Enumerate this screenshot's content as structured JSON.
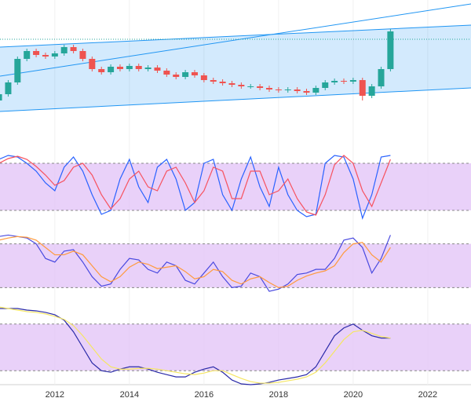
{
  "chart_data": [
    {
      "type": "candlestick",
      "x": [
        2010.5,
        2010.75,
        2011,
        2011.25,
        2011.5,
        2011.75,
        2012,
        2012.25,
        2012.5,
        2012.75,
        2013,
        2013.25,
        2013.5,
        2013.75,
        2014,
        2014.25,
        2014.5,
        2014.75,
        2015,
        2015.25,
        2015.5,
        2015.75,
        2016,
        2016.25,
        2016.5,
        2016.75,
        2017,
        2017.25,
        2017.5,
        2017.75,
        2018,
        2018.25,
        2018.5,
        2018.75,
        2019,
        2019.25,
        2019.5,
        2019.75,
        2020,
        2020.25,
        2020.5,
        2020.75,
        2021
      ],
      "open": [
        22,
        30,
        45,
        75,
        85,
        80,
        78,
        82,
        90,
        85,
        75,
        62,
        58,
        65,
        62,
        66,
        62,
        64,
        60,
        55,
        52,
        58,
        54,
        48,
        46,
        44,
        42,
        40,
        40,
        38,
        36,
        35,
        36,
        34,
        32,
        38,
        45,
        47,
        46,
        48,
        28,
        40,
        62
      ],
      "high": [
        33,
        48,
        78,
        88,
        88,
        83,
        85,
        93,
        93,
        88,
        78,
        65,
        68,
        68,
        69,
        69,
        67,
        67,
        63,
        58,
        61,
        61,
        57,
        51,
        49,
        47,
        45,
        43,
        43,
        41,
        39,
        39,
        39,
        37,
        41,
        48,
        50,
        50,
        51,
        51,
        43,
        65,
        113
      ],
      "low": [
        19,
        27,
        42,
        72,
        77,
        75,
        75,
        79,
        82,
        72,
        59,
        55,
        55,
        59,
        59,
        59,
        59,
        57,
        52,
        49,
        49,
        51,
        45,
        43,
        41,
        39,
        37,
        37,
        35,
        33,
        32,
        32,
        31,
        29,
        29,
        35,
        42,
        43,
        43,
        22,
        25,
        37,
        59
      ],
      "close": [
        30,
        45,
        75,
        85,
        80,
        78,
        82,
        90,
        85,
        75,
        62,
        58,
        65,
        62,
        66,
        62,
        64,
        60,
        55,
        52,
        58,
        54,
        48,
        46,
        44,
        42,
        40,
        40,
        38,
        36,
        35,
        36,
        34,
        32,
        38,
        45,
        47,
        46,
        48,
        28,
        40,
        62,
        110
      ],
      "up_color": "#26a69a",
      "down_color": "#ef5350",
      "xlim": [
        2010.53,
        2023.16
      ],
      "ylim": [
        0,
        150
      ],
      "channel": {
        "upper": [
          90,
          118
        ],
        "lower": [
          8,
          38
        ],
        "color": "#2196f3"
      },
      "trendline": [
        53,
        145
      ],
      "price_line": 100
    },
    {
      "type": "line",
      "x": [
        2010.5,
        2010.75,
        2011,
        2011.25,
        2011.5,
        2011.75,
        2012,
        2012.25,
        2012.5,
        2012.75,
        2013,
        2013.25,
        2013.5,
        2013.75,
        2014,
        2014.25,
        2014.5,
        2014.75,
        2015,
        2015.25,
        2015.5,
        2015.75,
        2016,
        2016.25,
        2016.5,
        2016.75,
        2017,
        2017.25,
        2017.5,
        2017.75,
        2018,
        2018.25,
        2018.5,
        2018.75,
        2019,
        2019.25,
        2019.5,
        2019.75,
        2020,
        2020.25,
        2020.5,
        2020.75,
        2021
      ],
      "series": [
        {
          "color": "#2962ff",
          "values": [
            85,
            90,
            88,
            80,
            70,
            55,
            45,
            75,
            88,
            70,
            40,
            15,
            20,
            60,
            85,
            50,
            30,
            75,
            85,
            60,
            20,
            30,
            80,
            85,
            40,
            20,
            60,
            88,
            50,
            25,
            75,
            40,
            20,
            12,
            15,
            80,
            90,
            88,
            60,
            10,
            40,
            88,
            90
          ]
        },
        {
          "color": "#f7525f",
          "values": [
            80,
            86,
            89,
            85,
            76,
            65,
            52,
            58,
            75,
            80,
            65,
            40,
            22,
            35,
            60,
            70,
            50,
            45,
            70,
            75,
            55,
            30,
            45,
            75,
            70,
            35,
            35,
            70,
            70,
            40,
            45,
            60,
            35,
            18,
            14,
            40,
            78,
            90,
            80,
            45,
            25,
            55,
            85
          ]
        }
      ],
      "xlim": [
        2010.53,
        2023.16
      ],
      "ylim": [
        0,
        100
      ],
      "bands": [
        20,
        80
      ]
    },
    {
      "type": "line",
      "x": [
        2010.5,
        2010.75,
        2011,
        2011.25,
        2011.5,
        2011.75,
        2012,
        2012.25,
        2012.5,
        2012.75,
        2013,
        2013.25,
        2013.5,
        2013.75,
        2014,
        2014.25,
        2014.5,
        2014.75,
        2015,
        2015.25,
        2015.5,
        2015.75,
        2016,
        2016.25,
        2016.5,
        2016.75,
        2017,
        2017.25,
        2017.5,
        2017.75,
        2018,
        2018.25,
        2018.5,
        2018.75,
        2019,
        2019.25,
        2019.5,
        2019.75,
        2020,
        2020.25,
        2020.5,
        2020.75,
        2021
      ],
      "series": [
        {
          "color": "#4a4ae0",
          "values": [
            90,
            92,
            90,
            88,
            80,
            60,
            55,
            70,
            72,
            55,
            35,
            22,
            25,
            45,
            60,
            58,
            45,
            40,
            55,
            50,
            30,
            25,
            40,
            55,
            35,
            20,
            22,
            40,
            35,
            15,
            18,
            25,
            38,
            40,
            45,
            45,
            60,
            85,
            88,
            75,
            40,
            60,
            92
          ]
        },
        {
          "color": "#ff9a3c",
          "values": [
            85,
            88,
            90,
            89,
            85,
            75,
            65,
            65,
            70,
            65,
            50,
            35,
            28,
            35,
            48,
            55,
            52,
            46,
            48,
            50,
            42,
            32,
            35,
            45,
            42,
            30,
            25,
            32,
            35,
            27,
            20,
            22,
            30,
            36,
            40,
            43,
            50,
            68,
            80,
            82,
            65,
            55,
            75
          ]
        }
      ],
      "xlim": [
        2010.53,
        2023.16
      ],
      "ylim": [
        0,
        100
      ],
      "bands": [
        20,
        80
      ]
    },
    {
      "type": "line",
      "x": [
        2010.5,
        2010.75,
        2011,
        2011.25,
        2011.5,
        2011.75,
        2012,
        2012.25,
        2012.5,
        2012.75,
        2013,
        2013.25,
        2013.5,
        2013.75,
        2014,
        2014.25,
        2014.5,
        2014.75,
        2015,
        2015.25,
        2015.5,
        2015.75,
        2016,
        2016.25,
        2016.5,
        2016.75,
        2017,
        2017.25,
        2017.5,
        2017.75,
        2018,
        2018.25,
        2018.5,
        2018.75,
        2019,
        2019.25,
        2019.5,
        2019.75,
        2020,
        2020.25,
        2020.5,
        2020.75,
        2021
      ],
      "series": [
        {
          "color": "#2a2aa8",
          "values": [
            100,
            100,
            100,
            98,
            97,
            95,
            92,
            85,
            70,
            50,
            30,
            20,
            18,
            22,
            25,
            25,
            22,
            18,
            15,
            12,
            12,
            18,
            22,
            25,
            18,
            8,
            3,
            2,
            3,
            5,
            8,
            10,
            12,
            15,
            25,
            45,
            65,
            75,
            80,
            72,
            65,
            62,
            62
          ]
        },
        {
          "color": "#f5e663",
          "values": [
            102,
            100,
            98,
            96,
            95,
            93,
            90,
            86,
            78,
            65,
            50,
            35,
            25,
            22,
            22,
            23,
            23,
            22,
            20,
            18,
            16,
            15,
            17,
            20,
            20,
            15,
            10,
            6,
            4,
            4,
            5,
            7,
            9,
            12,
            18,
            30,
            45,
            60,
            70,
            72,
            68,
            64,
            62
          ]
        }
      ],
      "xlim": [
        2010.53,
        2023.16
      ],
      "ylim": [
        0,
        100
      ],
      "bands": [
        20,
        80
      ],
      "xticks": [
        2012,
        2014,
        2016,
        2018,
        2020,
        2022
      ]
    }
  ]
}
